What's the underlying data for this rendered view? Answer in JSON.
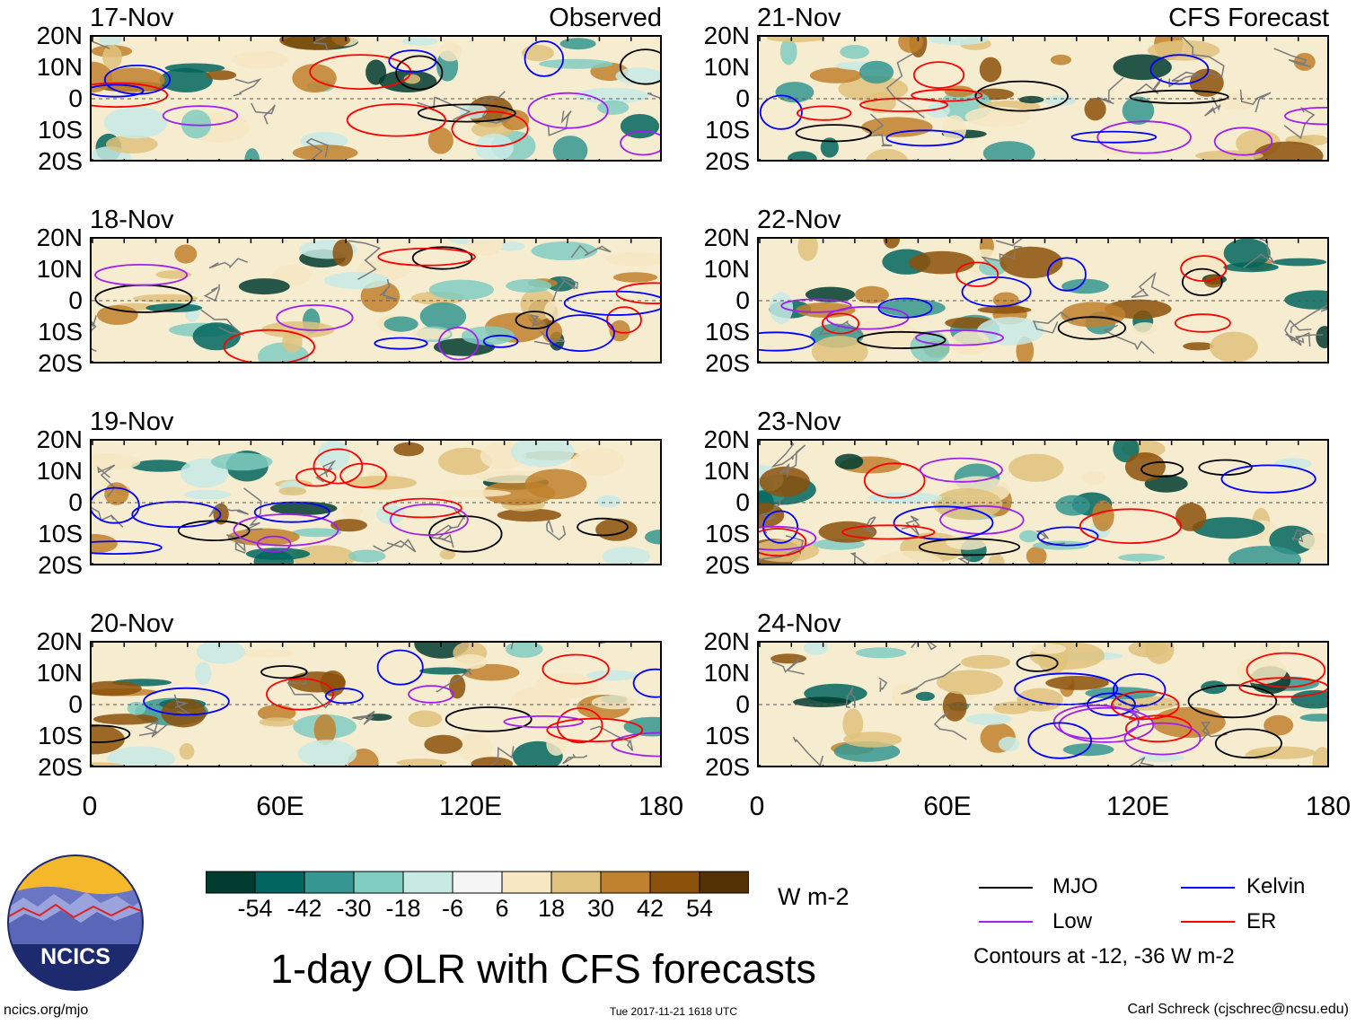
{
  "title": "1-day OLR with CFS forecasts",
  "labels": {
    "observed": "Observed",
    "forecast": "CFS Forecast"
  },
  "lat_ticks": [
    "20N",
    "10N",
    "0",
    "10S",
    "20S"
  ],
  "lon_ticks": [
    "0",
    "60E",
    "120E",
    "180"
  ],
  "panels": [
    {
      "date": "17-Nov",
      "kind": "observed",
      "title": "Observed"
    },
    {
      "date": "18-Nov",
      "kind": "observed",
      "title": ""
    },
    {
      "date": "19-Nov",
      "kind": "observed",
      "title": ""
    },
    {
      "date": "20-Nov",
      "kind": "observed",
      "title": ""
    },
    {
      "date": "21-Nov",
      "kind": "forecast",
      "title": "CFS Forecast"
    },
    {
      "date": "22-Nov",
      "kind": "forecast",
      "title": ""
    },
    {
      "date": "23-Nov",
      "kind": "forecast",
      "title": ""
    },
    {
      "date": "24-Nov",
      "kind": "forecast",
      "title": ""
    }
  ],
  "colorbar": {
    "colors": [
      "#003c30",
      "#01665e",
      "#35978f",
      "#80cdc1",
      "#c7eae5",
      "#f5f5f5",
      "#f6e8c3",
      "#dfc27d",
      "#bf812d",
      "#8c510a",
      "#543005"
    ],
    "labels": [
      "-54",
      "-42",
      "-30",
      "-18",
      "-6",
      "6",
      "18",
      "30",
      "42",
      "54"
    ],
    "units": "W m-2"
  },
  "legend": {
    "items": [
      {
        "name": "MJO",
        "color": "#000000"
      },
      {
        "name": "Kelvin",
        "color": "#0000ff"
      },
      {
        "name": "Low",
        "color": "#a020f0"
      },
      {
        "name": "ER",
        "color": "#ff0000"
      }
    ],
    "note": "Contours at -12, -36 W m-2"
  },
  "logo": {
    "text": "NCICS"
  },
  "footer": {
    "left": "ncics.org/mjo",
    "center": "Tue 2017-11-21 1618 UTC",
    "right": "Carl Schreck (cjschrec@ncsu.edu)"
  }
}
